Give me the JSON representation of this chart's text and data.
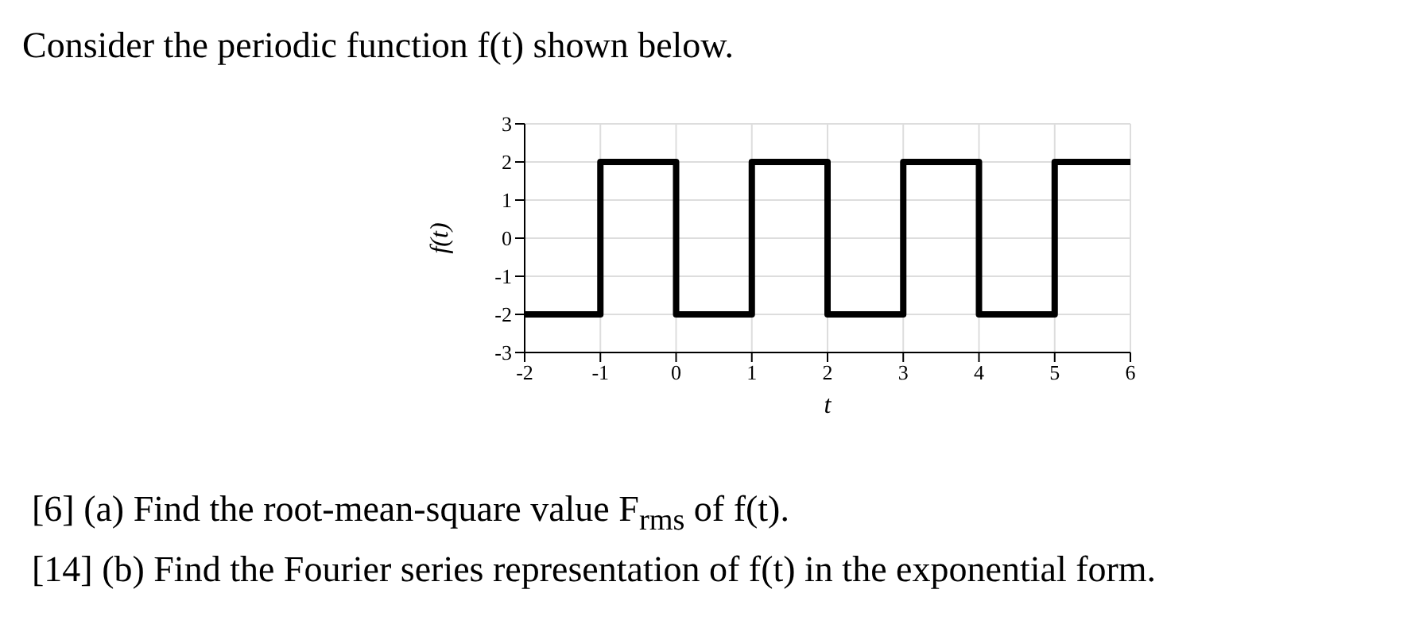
{
  "chart_data": {
    "type": "step",
    "title": "Consider the periodic function f(t) shown below.",
    "xlabel": "t",
    "ylabel": "f(t)",
    "x": [
      -2,
      -1,
      0,
      1,
      2,
      3,
      4,
      5,
      6
    ],
    "values": [
      -2,
      2,
      -2,
      2,
      -2,
      2,
      -2,
      2,
      2
    ],
    "color": "#000000",
    "xlim": [
      -2,
      6
    ],
    "xticks": [
      -2,
      -1,
      0,
      1,
      2,
      3,
      4,
      5,
      6
    ],
    "ylim": [
      -3,
      3
    ],
    "yticks": [
      -3,
      -2,
      -1,
      0,
      1,
      2,
      3
    ],
    "grid": true,
    "marker": "none",
    "line_style": "solid",
    "annotations": [
      "[6] (a) Find the root-mean-square value F$_{rms}$ of f(t).",
      "[14] (b) Find the Fourier series representation of f(t) in the exponential form."
    ]
  }
}
